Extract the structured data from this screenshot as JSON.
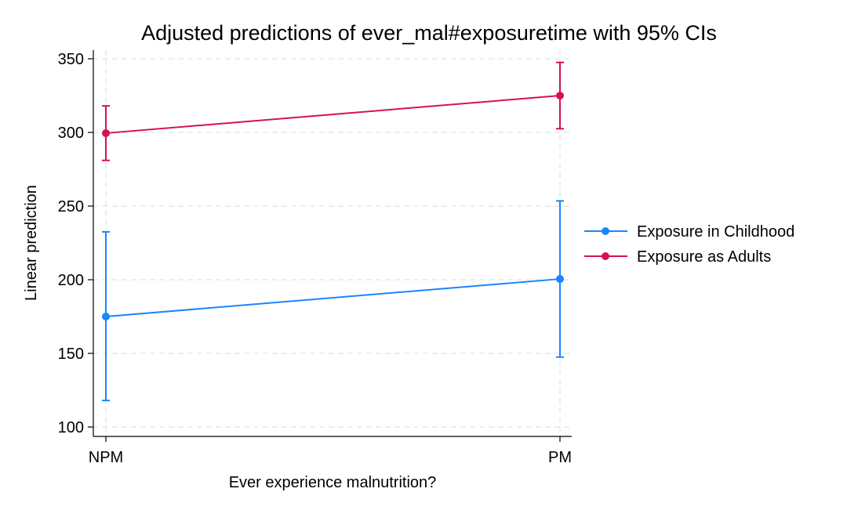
{
  "chart_data": {
    "type": "line",
    "title": "Adjusted predictions of ever_mal#exposuretime with 95% CIs",
    "xlabel": "Ever experience malnutrition?",
    "ylabel": "Linear prediction",
    "categories": [
      "NPM",
      "PM"
    ],
    "ylim": [
      100,
      350
    ],
    "yticks": [
      100,
      150,
      200,
      250,
      300,
      350
    ],
    "grid": true,
    "legend_position": "right",
    "series": [
      {
        "name": "Exposure in Childhood",
        "color": "#1a85ff",
        "values": [
          175,
          200.5
        ],
        "ci_low": [
          118,
          147.5
        ],
        "ci_high": [
          232.5,
          253.5
        ]
      },
      {
        "name": "Exposure as Adults",
        "color": "#d41159",
        "values": [
          299.5,
          325
        ],
        "ci_low": [
          281,
          302.5
        ],
        "ci_high": [
          318,
          347.5
        ]
      }
    ]
  }
}
